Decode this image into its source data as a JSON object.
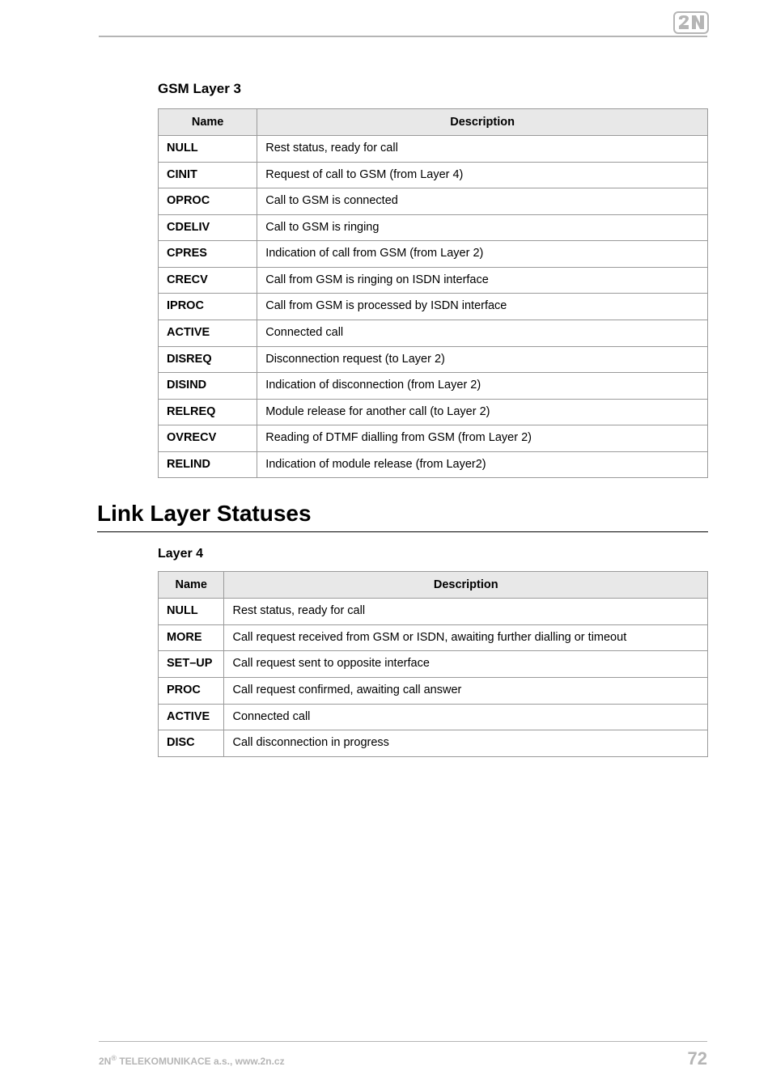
{
  "logo": {
    "outline_color": "#b5b5b5",
    "bg_color": "#ffffff"
  },
  "header_line_color": "#b5b5b5",
  "gsm_layer3": {
    "title": "GSM Layer 3",
    "columns": [
      "Name",
      "Description"
    ],
    "rows": [
      [
        "NULL",
        "Rest status, ready for call"
      ],
      [
        "CINIT",
        "Request of call to GSM (from Layer 4)"
      ],
      [
        "OPROC",
        "Call to GSM is connected"
      ],
      [
        "CDELIV",
        "Call to GSM is ringing"
      ],
      [
        "CPRES",
        "Indication of call from GSM (from Layer 2)"
      ],
      [
        "CRECV",
        "Call from GSM is ringing on ISDN interface"
      ],
      [
        "IPROC",
        "Call from GSM is processed by ISDN interface"
      ],
      [
        "ACTIVE",
        "Connected call"
      ],
      [
        "DISREQ",
        "Disconnection request (to Layer 2)"
      ],
      [
        "DISIND",
        "Indication of disconnection (from Layer 2)"
      ],
      [
        "RELREQ",
        "Module release for another call (to Layer 2)"
      ],
      [
        "OVRECV",
        "Reading of DTMF dialling from GSM (from Layer 2)"
      ],
      [
        "RELIND",
        "Indication of module release (from Layer2)"
      ]
    ],
    "col_widths": [
      "18%",
      "82%"
    ]
  },
  "link_layer": {
    "section_title": "Link Layer Statuses",
    "subtitle": "Layer 4",
    "columns": [
      "Name",
      "Description"
    ],
    "rows": [
      [
        "NULL",
        "Rest status, ready for call"
      ],
      [
        "MORE",
        "Call request received from GSM or ISDN, awaiting further dialling or timeout"
      ],
      [
        "SET–UP",
        "Call request sent to opposite interface"
      ],
      [
        "PROC",
        "Call request confirmed, awaiting call answer"
      ],
      [
        "ACTIVE",
        "Connected call"
      ],
      [
        "DISC",
        "Call disconnection in progress"
      ]
    ],
    "col_widths": [
      "12%",
      "88%"
    ]
  },
  "footer": {
    "company_prefix": "2N",
    "company_reg": "®",
    "company_rest": " TELEKOMUNIKACE a.s., www.2n.cz",
    "page": "72",
    "line_color": "#b5b5b5",
    "text_color": "#b5b5b5"
  }
}
